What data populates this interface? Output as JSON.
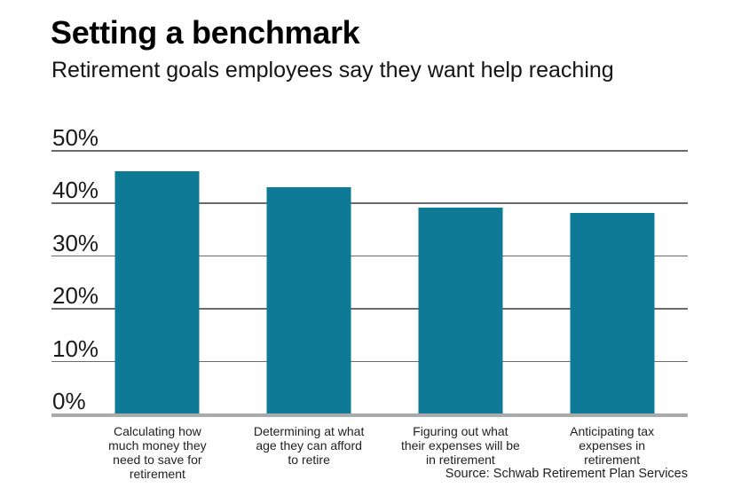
{
  "header": {
    "title": "Setting a benchmark",
    "subtitle": "Retirement goals employees say they want help reaching"
  },
  "source_note": "Source: Schwab Retirement Plan Services",
  "colors": {
    "bar": "#0e7a96",
    "gridline": "#6a6b6d",
    "baseline": "#a9aaac",
    "text": "#1a1a1a"
  },
  "chart_data": {
    "type": "bar",
    "title": "Setting a benchmark",
    "subtitle": "Retirement goals employees say they want help reaching",
    "source": "Source: Schwab Retirement Plan Services",
    "categories": [
      "Calculating how much money they need to save for retirement",
      "Determining at what age they can afford to retire",
      "Figuring out what their expenses will be in retirement",
      "Anticipating tax expenses in retirement"
    ],
    "category_display": [
      "Calculating how\nmuch money they\nneed to save for\nretirement",
      "Determining at what\nage they can afford\nto retire",
      "Figuring out what\ntheir expenses will be\nin retirement",
      "Anticipating tax\nexpenses in\nretirement"
    ],
    "values": [
      46,
      43,
      39,
      38
    ],
    "unit": "%",
    "xlabel": "",
    "ylabel": "",
    "ylim": [
      0,
      50
    ],
    "yticks": [
      0,
      10,
      20,
      30,
      40,
      50
    ],
    "grid": true,
    "legend": "none",
    "bar_color": "#0e7a96"
  }
}
